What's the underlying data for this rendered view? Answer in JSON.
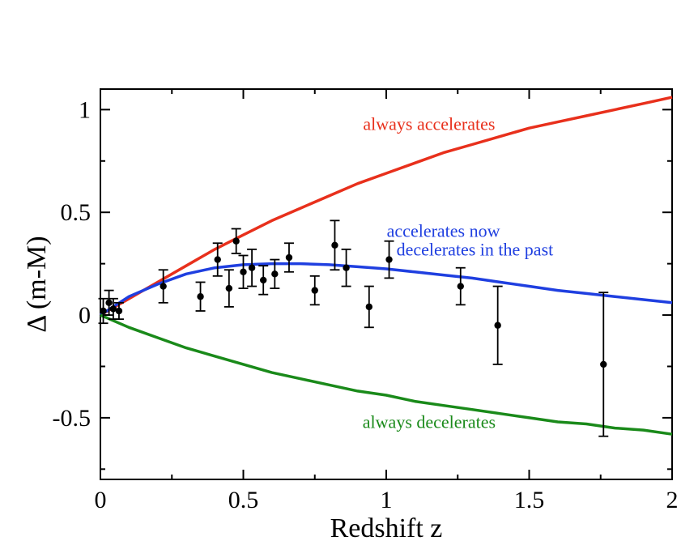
{
  "chart_data": {
    "type": "scatter",
    "title": "",
    "xlabel": "Redshift z",
    "ylabel": "Δ (m-M)",
    "xlim": [
      0,
      2
    ],
    "ylim": [
      -0.8,
      1.1
    ],
    "grid": false,
    "x_ticks": [
      0,
      0.5,
      1,
      1.5,
      2
    ],
    "x_tick_labels": [
      "0",
      "0.5",
      "1",
      "1.5",
      "2"
    ],
    "y_ticks": [
      -0.5,
      0,
      0.5,
      1
    ],
    "y_tick_labels": [
      "-0.5",
      "0",
      "0.5",
      "1"
    ],
    "series": [
      {
        "kind": "line",
        "color": "#e8301c",
        "points": [
          [
            0,
            0.0
          ],
          [
            0.1,
            0.08
          ],
          [
            0.2,
            0.16
          ],
          [
            0.3,
            0.24
          ],
          [
            0.4,
            0.32
          ],
          [
            0.5,
            0.39
          ],
          [
            0.6,
            0.46
          ],
          [
            0.7,
            0.52
          ],
          [
            0.8,
            0.58
          ],
          [
            0.9,
            0.64
          ],
          [
            1.0,
            0.69
          ],
          [
            1.1,
            0.74
          ],
          [
            1.2,
            0.79
          ],
          [
            1.3,
            0.83
          ],
          [
            1.4,
            0.87
          ],
          [
            1.5,
            0.91
          ],
          [
            1.6,
            0.94
          ],
          [
            1.7,
            0.97
          ],
          [
            1.8,
            1.0
          ],
          [
            1.9,
            1.03
          ],
          [
            2.0,
            1.06
          ]
        ]
      },
      {
        "kind": "line",
        "color": "#1f3fe0",
        "points": [
          [
            0,
            0.0
          ],
          [
            0.1,
            0.09
          ],
          [
            0.2,
            0.15
          ],
          [
            0.3,
            0.2
          ],
          [
            0.4,
            0.23
          ],
          [
            0.5,
            0.245
          ],
          [
            0.6,
            0.25
          ],
          [
            0.7,
            0.25
          ],
          [
            0.8,
            0.245
          ],
          [
            0.9,
            0.235
          ],
          [
            1.0,
            0.225
          ],
          [
            1.1,
            0.21
          ],
          [
            1.2,
            0.195
          ],
          [
            1.3,
            0.18
          ],
          [
            1.4,
            0.16
          ],
          [
            1.5,
            0.14
          ],
          [
            1.6,
            0.12
          ],
          [
            1.7,
            0.105
          ],
          [
            1.8,
            0.09
          ],
          [
            1.9,
            0.075
          ],
          [
            2.0,
            0.06
          ]
        ]
      },
      {
        "kind": "line",
        "color": "#1a8a1a",
        "points": [
          [
            0,
            0.0
          ],
          [
            0.1,
            -0.06
          ],
          [
            0.2,
            -0.11
          ],
          [
            0.3,
            -0.16
          ],
          [
            0.4,
            -0.2
          ],
          [
            0.5,
            -0.24
          ],
          [
            0.6,
            -0.28
          ],
          [
            0.7,
            -0.31
          ],
          [
            0.8,
            -0.34
          ],
          [
            0.9,
            -0.37
          ],
          [
            1.0,
            -0.39
          ],
          [
            1.1,
            -0.42
          ],
          [
            1.2,
            -0.44
          ],
          [
            1.3,
            -0.46
          ],
          [
            1.4,
            -0.48
          ],
          [
            1.5,
            -0.5
          ],
          [
            1.6,
            -0.52
          ],
          [
            1.7,
            -0.53
          ],
          [
            1.8,
            -0.55
          ],
          [
            1.9,
            -0.56
          ],
          [
            2.0,
            -0.58
          ]
        ]
      },
      {
        "kind": "errorbar",
        "color": "#000000",
        "points": [
          {
            "x": 0.01,
            "y": 0.02,
            "err": 0.06
          },
          {
            "x": 0.03,
            "y": 0.06,
            "err": 0.06
          },
          {
            "x": 0.045,
            "y": 0.03,
            "err": 0.05
          },
          {
            "x": 0.065,
            "y": 0.02,
            "err": 0.04
          },
          {
            "x": 0.22,
            "y": 0.14,
            "err": 0.08
          },
          {
            "x": 0.35,
            "y": 0.09,
            "err": 0.07
          },
          {
            "x": 0.41,
            "y": 0.27,
            "err": 0.08
          },
          {
            "x": 0.45,
            "y": 0.13,
            "err": 0.09
          },
          {
            "x": 0.475,
            "y": 0.36,
            "err": 0.06
          },
          {
            "x": 0.5,
            "y": 0.21,
            "err": 0.08
          },
          {
            "x": 0.53,
            "y": 0.23,
            "err": 0.09
          },
          {
            "x": 0.57,
            "y": 0.17,
            "err": 0.07
          },
          {
            "x": 0.61,
            "y": 0.2,
            "err": 0.07
          },
          {
            "x": 0.66,
            "y": 0.28,
            "err": 0.07
          },
          {
            "x": 0.75,
            "y": 0.12,
            "err": 0.07
          },
          {
            "x": 0.82,
            "y": 0.34,
            "err": 0.12
          },
          {
            "x": 0.86,
            "y": 0.23,
            "err": 0.09
          },
          {
            "x": 0.94,
            "y": 0.04,
            "err": 0.1
          },
          {
            "x": 1.01,
            "y": 0.27,
            "err": 0.09
          },
          {
            "x": 1.26,
            "y": 0.14,
            "err": 0.09
          },
          {
            "x": 1.39,
            "y": -0.05,
            "err": 0.19
          },
          {
            "x": 1.76,
            "y": -0.24,
            "err": 0.35
          }
        ]
      }
    ],
    "annotations": [
      {
        "text": "always accelerates",
        "x": 1.15,
        "y": 0.9,
        "color": "#e8301c"
      },
      {
        "text": "accelerates now",
        "x": 1.2,
        "y": 0.38,
        "color": "#1f3fe0"
      },
      {
        "text": "decelerates in the past",
        "x": 1.31,
        "y": 0.29,
        "color": "#1f3fe0"
      },
      {
        "text": "always decelerates",
        "x": 1.15,
        "y": -0.55,
        "color": "#1a8a1a"
      }
    ]
  }
}
